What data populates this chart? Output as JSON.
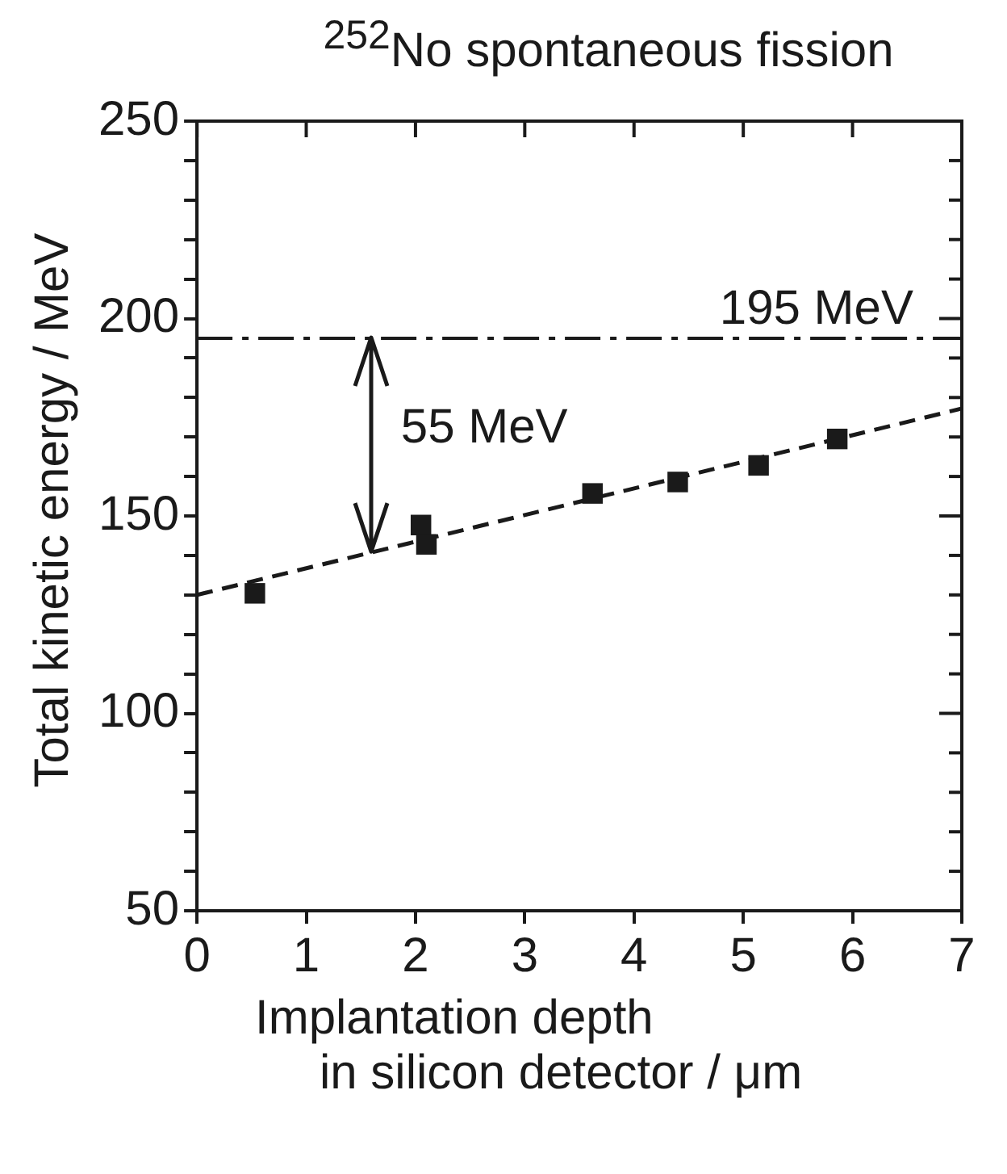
{
  "chart_data": {
    "type": "scatter",
    "title": "$^{252}$No spontaneous fission",
    "xlabel": "Implantation depth\nin silicon detector / μm",
    "ylabel": "Total kinetic energy / MeV",
    "series": [
      {
        "color": "#1a1a1a",
        "marker": "square",
        "x": [
          0.53,
          2.05,
          2.1,
          3.62,
          4.4,
          5.14,
          5.86
        ],
        "values": [
          130.4,
          147.7,
          142.8,
          155.7,
          158.6,
          162.8,
          169.5
        ]
      },
      {
        "type": "line",
        "color": "#1a1a1a",
        "marker": "none",
        "line_style": "dashed",
        "x": [
          0,
          7
        ],
        "values": [
          130,
          177.2
        ]
      }
    ],
    "xlim": [
      0,
      7
    ],
    "xticks": [
      0,
      1,
      2,
      3,
      4,
      5,
      6,
      7
    ],
    "ylim": [
      50,
      250
    ],
    "yticks": [
      50,
      {
        "value": 60,
        "label": null
      },
      {
        "value": 70,
        "label": null
      },
      {
        "value": 80,
        "label": null
      },
      {
        "value": 90,
        "label": null
      },
      100,
      {
        "value": 110,
        "label": null
      },
      {
        "value": 120,
        "label": null
      },
      {
        "value": 130,
        "label": null
      },
      {
        "value": 140,
        "label": null
      },
      150,
      {
        "value": 160,
        "label": null
      },
      {
        "value": 170,
        "label": null
      },
      {
        "value": 180,
        "label": null
      },
      {
        "value": 190,
        "label": null
      },
      200,
      {
        "value": 210,
        "label": null
      },
      {
        "value": 220,
        "label": null
      },
      {
        "value": 230,
        "label": null
      },
      {
        "value": 240,
        "label": null
      },
      250
    ],
    "ref_lines": [
      {
        "axis": "y",
        "value": 195,
        "label": "195 MeV",
        "color": "#1a1a1a"
      }
    ],
    "annotations": [
      "55 MeV"
    ],
    "grid": false,
    "legend": false
  }
}
